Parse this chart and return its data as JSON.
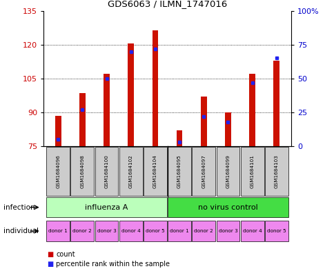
{
  "title": "GDS6063 / ILMN_1747016",
  "samples": [
    "GSM1684096",
    "GSM1684098",
    "GSM1684100",
    "GSM1684102",
    "GSM1684104",
    "GSM1684095",
    "GSM1684097",
    "GSM1684099",
    "GSM1684101",
    "GSM1684103"
  ],
  "counts": [
    88.5,
    98.5,
    107.0,
    120.5,
    126.5,
    82.0,
    97.0,
    90.0,
    107.0,
    113.0
  ],
  "percentile_ranks": [
    5,
    27,
    50,
    70,
    72,
    3,
    22,
    18,
    47,
    65
  ],
  "y_min": 75,
  "y_max": 135,
  "y_ticks": [
    75,
    90,
    105,
    120,
    135
  ],
  "right_y_ticks": [
    0,
    25,
    50,
    75,
    100
  ],
  "right_y_tick_labels": [
    "0",
    "25",
    "50",
    "75",
    "100%"
  ],
  "infection_groups": [
    {
      "label": "influenza A",
      "start": 0,
      "end": 5,
      "color": "#bbffbb"
    },
    {
      "label": "no virus control",
      "start": 5,
      "end": 10,
      "color": "#44dd44"
    }
  ],
  "individual_labels": [
    "donor 1",
    "donor 2",
    "donor 3",
    "donor 4",
    "donor 5",
    "donor 1",
    "donor 2",
    "donor 3",
    "donor 4",
    "donor 5"
  ],
  "individual_color": "#ee88ee",
  "bar_color": "#cc1100",
  "blue_marker_color": "#2222ee",
  "bar_width": 0.25,
  "grid_color": "#000000",
  "axis_label_color_left": "#cc0000",
  "axis_label_color_right": "#0000cc",
  "sample_box_color": "#cccccc",
  "infection_row_label": "infection",
  "individual_row_label": "individual",
  "legend_count_color": "#cc0000",
  "legend_percentile_color": "#2222ee"
}
